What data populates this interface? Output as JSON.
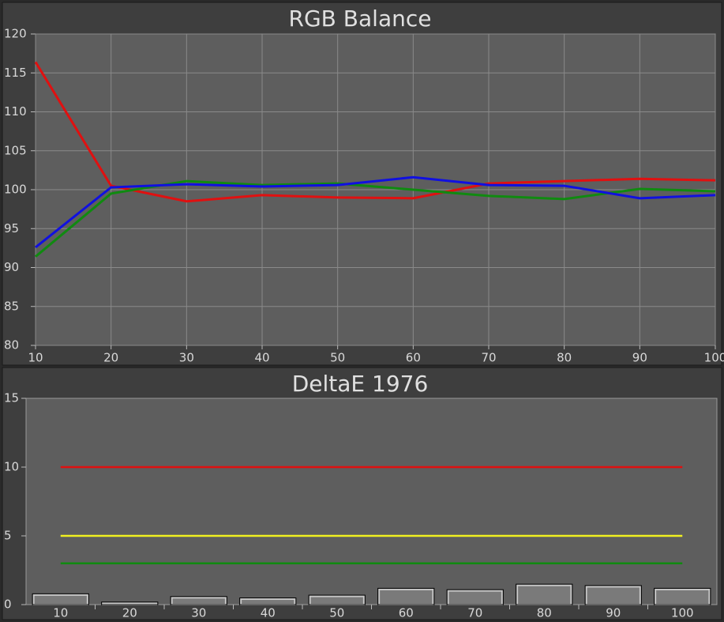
{
  "chart_data": [
    {
      "type": "line",
      "title": "RGB Balance",
      "x": [
        10,
        20,
        30,
        40,
        50,
        60,
        70,
        80,
        90,
        100
      ],
      "series": [
        {
          "color": "#e01010",
          "values": [
            116.4,
            100.5,
            98.5,
            99.3,
            99.0,
            98.9,
            100.8,
            101.1,
            101.4,
            101.2
          ]
        },
        {
          "color": "#108a10",
          "values": [
            91.4,
            99.5,
            101.1,
            100.6,
            100.8,
            100.0,
            99.2,
            98.8,
            100.1,
            99.8
          ]
        },
        {
          "color": "#1010e0",
          "values": [
            92.6,
            100.3,
            100.7,
            100.4,
            100.6,
            101.6,
            100.6,
            100.5,
            98.9,
            99.3
          ]
        }
      ],
      "xlim": [
        10,
        100
      ],
      "xticks": [
        10,
        20,
        30,
        40,
        50,
        60,
        70,
        80,
        90,
        100
      ],
      "ylim": [
        80,
        120
      ],
      "yticks": [
        80,
        85,
        90,
        95,
        100,
        105,
        110,
        115,
        120
      ],
      "grid": true
    },
    {
      "type": "bar",
      "title": "DeltaE 1976",
      "categories": [
        "10",
        "20",
        "30",
        "40",
        "50",
        "60",
        "70",
        "80",
        "90",
        "100"
      ],
      "values": [
        0.7,
        0.1,
        0.5,
        0.4,
        0.6,
        1.1,
        1.0,
        1.4,
        1.3,
        1.1
      ],
      "color": "#7a7a7a",
      "ylim": [
        0,
        15
      ],
      "yticks": [
        0,
        5,
        10,
        15
      ],
      "reference_lines": [
        {
          "value": 10,
          "color": "#e01010"
        },
        {
          "value": 5,
          "color": "#f0f020"
        },
        {
          "value": 3,
          "color": "#108a10"
        }
      ],
      "grid": false
    }
  ]
}
